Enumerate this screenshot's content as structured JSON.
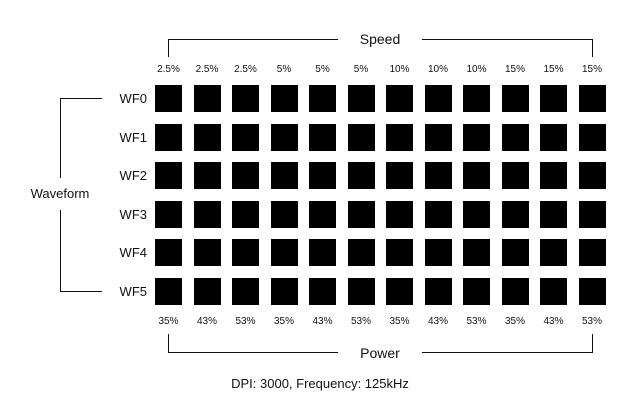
{
  "diagram": {
    "top_axis_title": "Speed",
    "bottom_axis_title": "Power",
    "left_axis_title": "Waveform",
    "speed_labels": [
      "2.5%",
      "2.5%",
      "2.5%",
      "5%",
      "5%",
      "5%",
      "10%",
      "10%",
      "10%",
      "15%",
      "15%",
      "15%"
    ],
    "power_labels": [
      "35%",
      "43%",
      "53%",
      "35%",
      "43%",
      "53%",
      "35%",
      "43%",
      "53%",
      "35%",
      "43%",
      "53%"
    ],
    "waveform_labels": [
      "WF0",
      "WF1",
      "WF2",
      "WF3",
      "WF4",
      "WF5"
    ],
    "cell_color": "#000000",
    "footer": "DPI: 3000, Frequency: 125kHz"
  }
}
